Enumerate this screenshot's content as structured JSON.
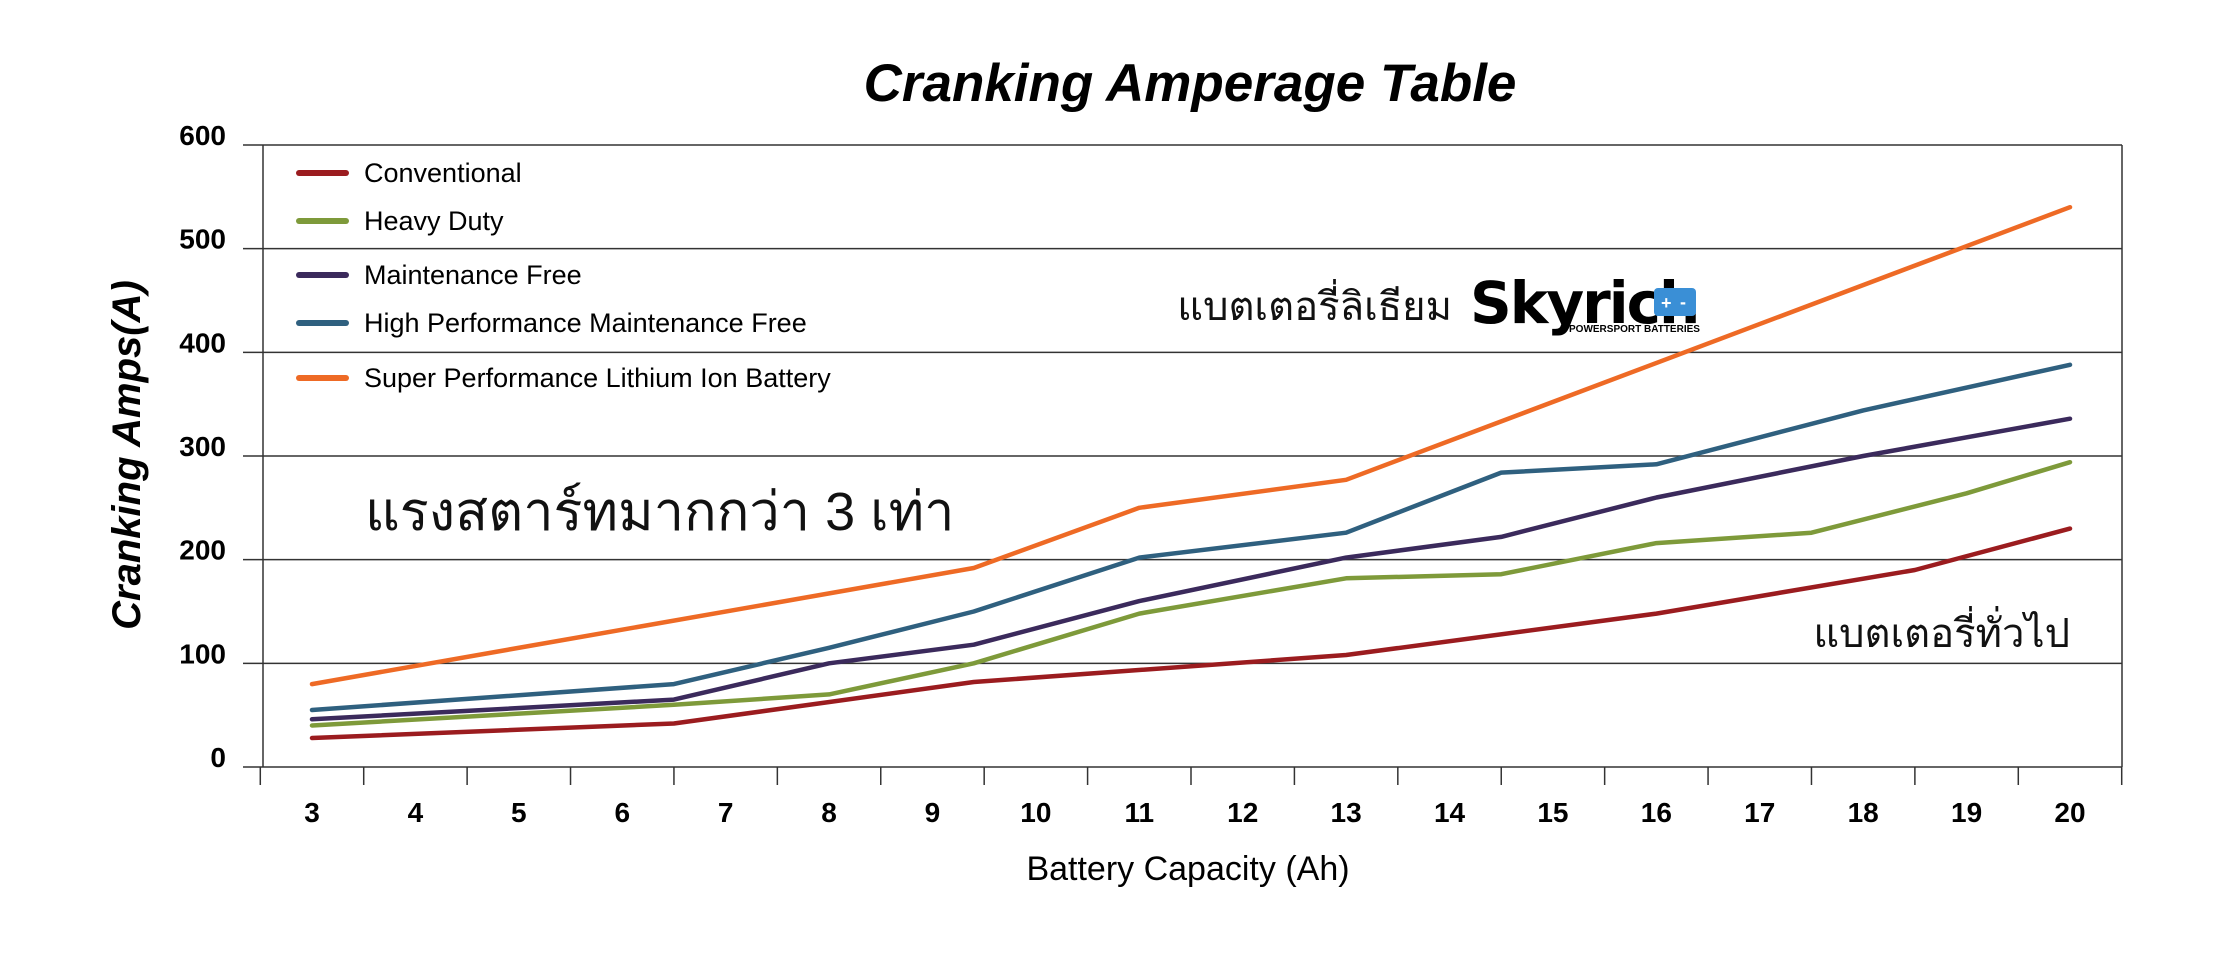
{
  "chart_data": {
    "type": "line",
    "title": "Cranking Amperage Table",
    "xlabel": "Battery Capacity (Ah)",
    "ylabel": "Cranking Amps(A)",
    "categories": [
      "3",
      "4",
      "5",
      "6",
      "7",
      "8",
      "9",
      "10",
      "11",
      "12",
      "13",
      "14",
      "15",
      "16",
      "17",
      "18",
      "19",
      "20"
    ],
    "x_ticks": [
      3,
      4,
      5,
      6,
      7,
      8,
      9,
      10,
      11,
      12,
      13,
      14,
      15,
      16,
      17,
      18,
      19,
      20
    ],
    "y_ticks": [
      0,
      100,
      200,
      300,
      400,
      500,
      600
    ],
    "ylim": [
      0,
      600
    ],
    "xlim": [
      3,
      20
    ],
    "grid": "horizontal",
    "legend_position": "top-left",
    "series": [
      {
        "name": "Conventional",
        "color": "#9b1c1f",
        "points": [
          [
            3,
            28
          ],
          [
            6.5,
            42
          ],
          [
            9.4,
            82
          ],
          [
            13,
            108
          ],
          [
            16,
            148
          ],
          [
            18.5,
            190
          ],
          [
            20,
            230
          ]
        ]
      },
      {
        "name": "Heavy Duty",
        "color": "#7e9a3a",
        "points": [
          [
            3,
            40
          ],
          [
            6.5,
            60
          ],
          [
            8,
            70
          ],
          [
            9.4,
            100
          ],
          [
            11,
            148
          ],
          [
            13,
            182
          ],
          [
            14.5,
            186
          ],
          [
            16,
            216
          ],
          [
            17.5,
            226
          ],
          [
            19,
            264
          ],
          [
            20,
            294
          ]
        ]
      },
      {
        "name": "Maintenance Free",
        "color": "#3b2a5c",
        "points": [
          [
            3,
            46
          ],
          [
            6.5,
            65
          ],
          [
            8,
            100
          ],
          [
            9.4,
            118
          ],
          [
            11,
            160
          ],
          [
            13,
            202
          ],
          [
            14.5,
            222
          ],
          [
            16,
            260
          ],
          [
            18,
            300
          ],
          [
            20,
            336
          ]
        ]
      },
      {
        "name": "High Performance Maintenance Free",
        "color": "#2f607f",
        "points": [
          [
            3,
            55
          ],
          [
            6.5,
            80
          ],
          [
            8,
            115
          ],
          [
            9.4,
            150
          ],
          [
            11,
            202
          ],
          [
            13,
            226
          ],
          [
            14.5,
            284
          ],
          [
            16,
            292
          ],
          [
            18,
            344
          ],
          [
            20,
            388
          ]
        ]
      },
      {
        "name": "Super Performance Lithium Ion Battery",
        "color": "#ee6a25",
        "points": [
          [
            3,
            80
          ],
          [
            9.4,
            192
          ],
          [
            11,
            250
          ],
          [
            13,
            277
          ],
          [
            20,
            540
          ]
        ]
      }
    ],
    "annotations": {
      "lithium_label": "แบตเตอรี่ลิเธียม",
      "boost_label": "แรงสตาร์ทมากกว่า 3 เท่า",
      "normal_label": "แบตเตอรี่ทั่วไป"
    },
    "logo": {
      "text": "Skyrich",
      "subtext": "POWERSPORT BATTERIES",
      "accent_color": "#3a8fd6"
    }
  }
}
